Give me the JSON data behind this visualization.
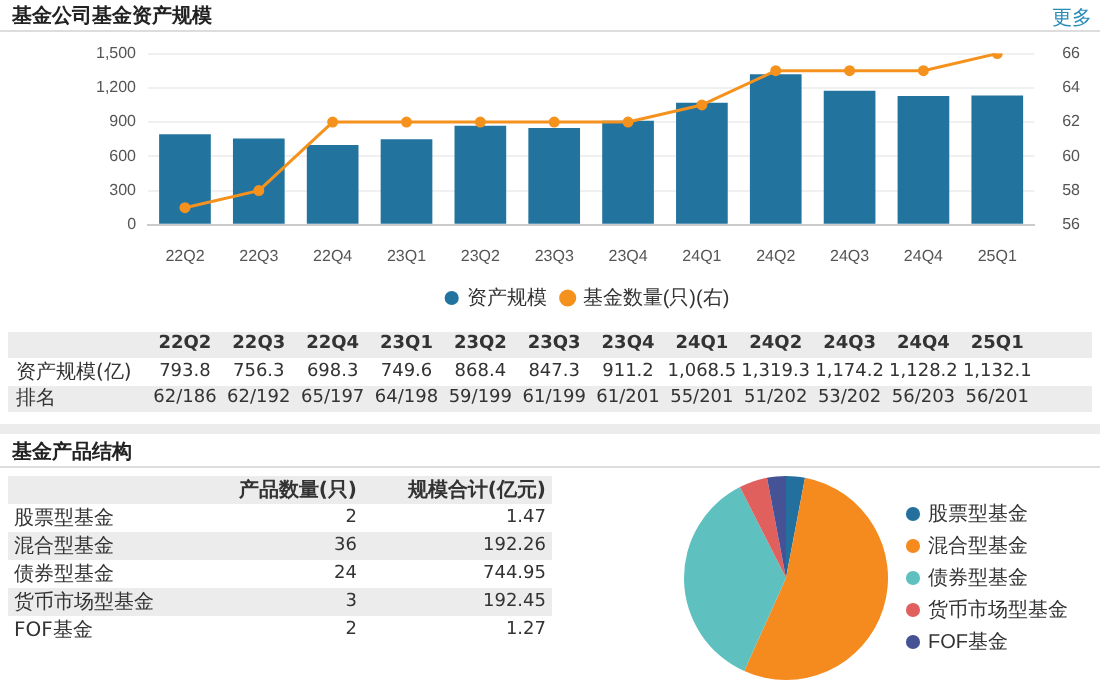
{
  "chart_data": [
    {
      "type": "bar",
      "title": "基金公司基金资产规模",
      "categories": [
        "22Q2",
        "22Q3",
        "22Q4",
        "23Q1",
        "23Q2",
        "23Q3",
        "23Q4",
        "24Q1",
        "24Q2",
        "24Q3",
        "24Q4",
        "25Q1"
      ],
      "series": [
        {
          "name": "资产规模",
          "type": "bar",
          "color": "#23739f",
          "values": [
            793.8,
            756.3,
            698.3,
            749.6,
            868.4,
            847.3,
            911.2,
            1068.5,
            1319.3,
            1174.2,
            1128.2,
            1132.1
          ],
          "value_labels": [
            "793.8",
            "756.3",
            "698.3",
            "749.6",
            "868.4",
            "847.3",
            "911.2",
            "1,068.5",
            "1,319.3",
            "1,174.2",
            "1,128.2",
            "1,132.1"
          ]
        },
        {
          "name": "基金数量(只)(右)",
          "type": "line",
          "color": "#f5921e",
          "axis": "y2",
          "values": [
            57,
            58,
            62,
            62,
            62,
            62,
            62,
            63,
            65,
            65,
            65,
            66
          ]
        }
      ],
      "ylim": [
        0,
        1500
      ],
      "yticks": [
        0,
        300,
        600,
        900,
        {
          "value": 1200,
          "label": "1,200"
        },
        {
          "value": 1500,
          "label": "1,500"
        }
      ],
      "y2lim": [
        56,
        66
      ],
      "y2ticks": [
        56,
        58,
        60,
        62,
        64,
        66
      ],
      "grid": "y",
      "legend": "bottom",
      "marker": "circle",
      "annotations": [
        "更多",
        "资产规模(亿)",
        "排名",
        "62/186",
        "62/192",
        "65/197",
        "64/198",
        "59/199",
        "61/199",
        "61/201",
        "55/201",
        "51/202",
        "53/202",
        "56/203",
        "56/201"
      ]
    },
    {
      "type": "pie",
      "title": "基金产品结构",
      "categories": [
        "股票型基金",
        "混合型基金",
        "债券型基金",
        "货币市场型基金",
        "FOF基金"
      ],
      "values": [
        2,
        36,
        24,
        3,
        2
      ],
      "colors": [
        "#23709e",
        "#f58a1f",
        "#5fc0c0",
        "#e0605e",
        "#465296"
      ],
      "legend": "right",
      "data_labels": true,
      "annotations": [
        "产品数量(只)",
        "规模合计(亿元)",
        {
          "text": "1.47",
          "x": "股票型基金"
        },
        {
          "text": "192.26",
          "x": "混合型基金"
        },
        {
          "text": "744.95",
          "x": "债券型基金"
        },
        {
          "text": "192.45",
          "x": "货币市场型基金"
        },
        {
          "text": "1.27",
          "x": "FOF基金"
        }
      ]
    }
  ]
}
